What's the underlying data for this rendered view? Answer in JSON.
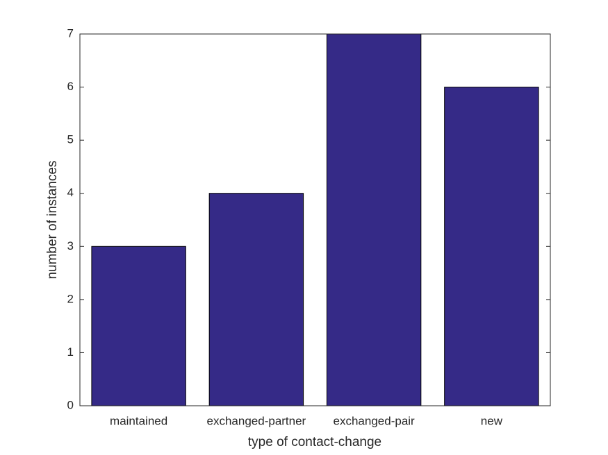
{
  "chart_data": {
    "type": "bar",
    "x_label": "type of contact-change",
    "y_label": "number of instances",
    "categories": [
      "maintained",
      "exchanged-partner",
      "exchanged-pair",
      "new"
    ],
    "values": [
      3,
      4,
      7,
      6
    ],
    "color": "#352a87",
    "ylim": [
      0,
      7
    ],
    "yticks": [
      0,
      1,
      2,
      3,
      4,
      5,
      6,
      7
    ],
    "grid": false
  }
}
